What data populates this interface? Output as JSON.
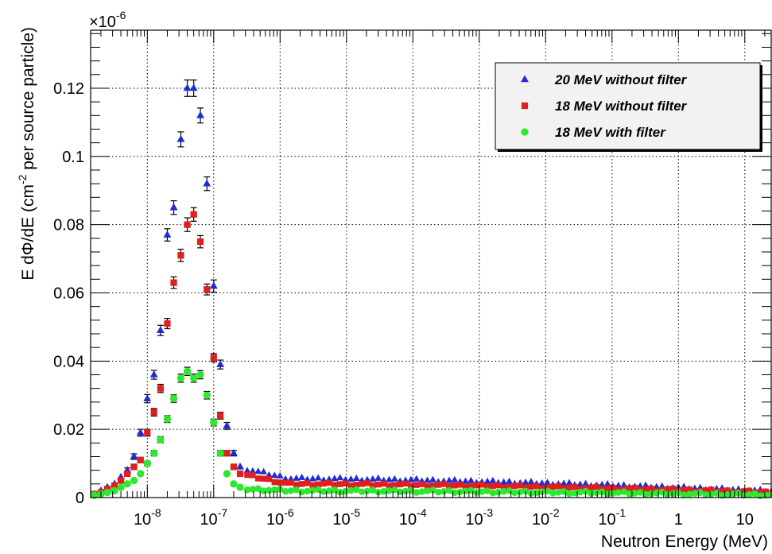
{
  "chart_data": {
    "type": "scatter",
    "title": "",
    "xlabel": "Neutron Energy (MeV)",
    "ylabel_parts": [
      "E d",
      "Φ",
      "/dE (cm",
      "-2",
      " per source particle)"
    ],
    "y_multiplier_base": "×10",
    "y_multiplier_exp": "-6",
    "x_scale": "log",
    "xlim": [
      1.4e-09,
      25
    ],
    "ylim": [
      0,
      0.137
    ],
    "grid": true,
    "legend_position": "top-right",
    "x_tick_labels": [
      {
        "base": "10",
        "exp": "-8",
        "value": 1e-08
      },
      {
        "base": "10",
        "exp": "-7",
        "value": 1e-07
      },
      {
        "base": "10",
        "exp": "-6",
        "value": 1e-06
      },
      {
        "base": "10",
        "exp": "-5",
        "value": 1e-05
      },
      {
        "base": "10",
        "exp": "-4",
        "value": 0.0001
      },
      {
        "base": "10",
        "exp": "-3",
        "value": 0.001
      },
      {
        "base": "10",
        "exp": "-2",
        "value": 0.01
      },
      {
        "base": "10",
        "exp": "-1",
        "value": 0.1
      },
      {
        "base": "1",
        "exp": "",
        "value": 1
      },
      {
        "base": "10",
        "exp": "",
        "value": 10
      }
    ],
    "y_ticks": [
      0,
      0.02,
      0.04,
      0.06,
      0.08,
      0.1,
      0.12
    ],
    "y_tick_labels": [
      "0",
      "0.02",
      "0.04",
      "0.06",
      "0.08",
      "0.1",
      "0.12"
    ],
    "series": [
      {
        "name": "20 MeV without filter",
        "marker": "triangle",
        "color": "#1f2bd6",
        "peak_x": [
          1.58e-09,
          2e-09,
          2.5e-09,
          3.2e-09,
          4e-09,
          5e-09,
          6.3e-09,
          7.9e-09,
          1e-08,
          1.26e-08,
          1.58e-08,
          2e-08,
          2.5e-08,
          3.2e-08,
          4e-08,
          5e-08,
          6.3e-08,
          7.9e-08,
          1e-07,
          1.26e-07,
          1.58e-07,
          2e-07,
          2.5e-07
        ],
        "peak_y": [
          0.001,
          0.002,
          0.003,
          0.004,
          0.006,
          0.008,
          0.012,
          0.019,
          0.029,
          0.036,
          0.049,
          0.077,
          0.085,
          0.105,
          0.12,
          0.12,
          0.112,
          0.092,
          0.062,
          0.039,
          0.021,
          0.013,
          0.009
        ],
        "peak_err": [
          0.0003,
          0.0003,
          0.0004,
          0.0005,
          0.0006,
          0.0007,
          0.0008,
          0.001,
          0.0012,
          0.0013,
          0.0015,
          0.0018,
          0.002,
          0.0022,
          0.0024,
          0.0024,
          0.0022,
          0.002,
          0.0018,
          0.0013,
          0.001,
          0.0008,
          0.0005
        ],
        "tail_x_range": [
          3.2e-07,
          25
        ],
        "tail_y_start": 0.0082,
        "tail_y_mid": 0.0055,
        "tail_y_end": 0.0018
      },
      {
        "name": "18 MeV without filter",
        "marker": "square",
        "color": "#e02020",
        "peak_x": [
          1.58e-09,
          2e-09,
          2.5e-09,
          3.2e-09,
          4e-09,
          5e-09,
          6.3e-09,
          7.9e-09,
          1e-08,
          1.26e-08,
          1.58e-08,
          2e-08,
          2.5e-08,
          3.2e-08,
          4e-08,
          5e-08,
          6.3e-08,
          7.9e-08,
          1e-07,
          1.26e-07,
          1.58e-07,
          2e-07,
          2.5e-07
        ],
        "peak_y": [
          0.001,
          0.0015,
          0.0025,
          0.0035,
          0.005,
          0.007,
          0.009,
          0.011,
          0.019,
          0.025,
          0.032,
          0.051,
          0.063,
          0.071,
          0.08,
          0.083,
          0.075,
          0.061,
          0.041,
          0.024,
          0.013,
          0.009,
          0.007
        ],
        "peak_err": [
          0.0002,
          0.0003,
          0.0003,
          0.0004,
          0.0005,
          0.0006,
          0.0007,
          0.0008,
          0.001,
          0.0011,
          0.0012,
          0.0015,
          0.0017,
          0.0018,
          0.002,
          0.002,
          0.0018,
          0.0016,
          0.0012,
          0.001,
          0.0008,
          0.0006,
          0.0004
        ],
        "tail_x_range": [
          3.2e-07,
          25
        ],
        "tail_y_start": 0.0065,
        "tail_y_mid": 0.004,
        "tail_y_end": 0.0015
      },
      {
        "name": "18 MeV with filter",
        "marker": "circle",
        "color": "#2ee830",
        "peak_x": [
          1.58e-09,
          2e-09,
          2.5e-09,
          3.2e-09,
          4e-09,
          5e-09,
          6.3e-09,
          7.9e-09,
          1e-08,
          1.26e-08,
          1.58e-08,
          2e-08,
          2.5e-08,
          3.2e-08,
          4e-08,
          5e-08,
          6.3e-08,
          7.9e-08,
          1e-07,
          1.26e-07,
          1.58e-07,
          2e-07,
          2.5e-07
        ],
        "peak_y": [
          0.0007,
          0.001,
          0.0015,
          0.002,
          0.003,
          0.004,
          0.005,
          0.007,
          0.01,
          0.013,
          0.017,
          0.023,
          0.029,
          0.035,
          0.037,
          0.035,
          0.036,
          0.03,
          0.022,
          0.013,
          0.007,
          0.004,
          0.003
        ],
        "peak_err": [
          0.0002,
          0.0002,
          0.0003,
          0.0003,
          0.0004,
          0.0004,
          0.0005,
          0.0006,
          0.0007,
          0.0008,
          0.0009,
          0.001,
          0.0011,
          0.0012,
          0.0012,
          0.0012,
          0.0012,
          0.0011,
          0.001,
          0.0008,
          0.0006,
          0.0005,
          0.0004
        ],
        "tail_x_range": [
          3.2e-07,
          25
        ],
        "tail_y_start": 0.0025,
        "tail_y_mid": 0.002,
        "tail_y_end": 0.0008
      }
    ]
  }
}
